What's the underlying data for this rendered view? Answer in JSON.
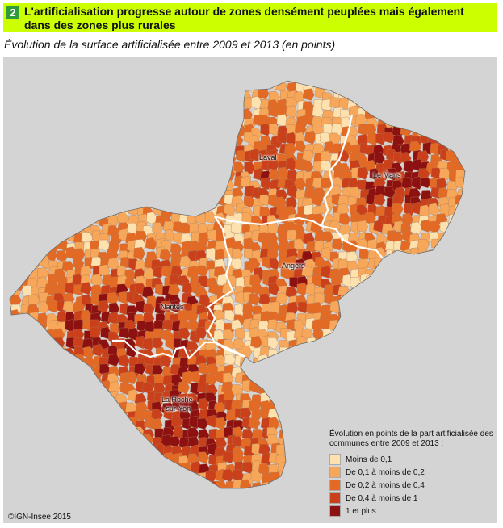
{
  "header": {
    "number": "2",
    "title": "L'artificialisation progresse autour de zones densément peuplées mais également dans des zones plus rurales",
    "subtitle": "Évolution de la surface artificialisée entre 2009 et 2013 (en points)"
  },
  "cities": [
    {
      "id": "laval",
      "name": "Laval"
    },
    {
      "id": "le-mans",
      "name": "Le Mans"
    },
    {
      "id": "angers",
      "name": "Angers"
    },
    {
      "id": "nantes",
      "name": "Nantes"
    },
    {
      "id": "la-roche-sur-yon",
      "name": "La Roche\n-sur-Yon"
    }
  ],
  "legend": {
    "title": "Évolution en points de la part artificialisée des communes entre 2009 et 2013 :",
    "items": [
      {
        "label": "Moins de 0,1",
        "color": "#fde2b0"
      },
      {
        "label": "De 0,1 à moins de 0,2",
        "color": "#f6a75a"
      },
      {
        "label": "De 0,2 à moins de 0,4",
        "color": "#e36a25"
      },
      {
        "label": "De 0,4 à moins de 1",
        "color": "#c9401a"
      },
      {
        "label": "1 et plus",
        "color": "#8e1111"
      }
    ]
  },
  "colors": {
    "title_bar": "#ccff00",
    "number_badge": "#2e9a3a",
    "outside_region": "#d4d4d4",
    "department_border": "#ffffff"
  },
  "copyright": "©IGN-Insee 2015"
}
